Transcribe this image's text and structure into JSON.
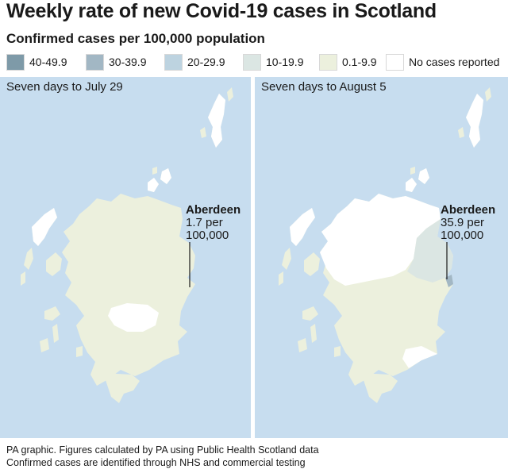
{
  "title": "Weekly rate of new Covid-19 cases in Scotland",
  "subtitle": "Confirmed cases per 100,000 population",
  "legend": [
    {
      "label": "40-49.9",
      "color": "#7e9aa8"
    },
    {
      "label": "30-39.9",
      "color": "#a2b7c4"
    },
    {
      "label": "20-29.9",
      "color": "#bdd3e0"
    },
    {
      "label": "10-19.9",
      "color": "#dbe6e3"
    },
    {
      "label": "0.1-9.9",
      "color": "#ecf0dd"
    },
    {
      "label": "No cases reported",
      "color": "#ffffff"
    }
  ],
  "colors": {
    "sea": "#c7ddef",
    "land_default": "#ecf0dd",
    "no_cases": "#ffffff",
    "aberdeen_week2": "#a2b7c4",
    "neighbour_week2": "#dbe6e3"
  },
  "maps": [
    {
      "panel_title": "Seven days to July 29",
      "annotation": {
        "city": "Aberdeen",
        "line1": "1.7 per",
        "line2": "100,000"
      }
    },
    {
      "panel_title": "Seven days to August 5",
      "annotation": {
        "city": "Aberdeen",
        "line1": "35.9 per",
        "line2": "100,000"
      }
    }
  ],
  "footer": {
    "line1": "PA graphic. Figures calculated by PA using Public Health Scotland data",
    "line2": "Confirmed cases are identified through NHS and commercial testing"
  }
}
